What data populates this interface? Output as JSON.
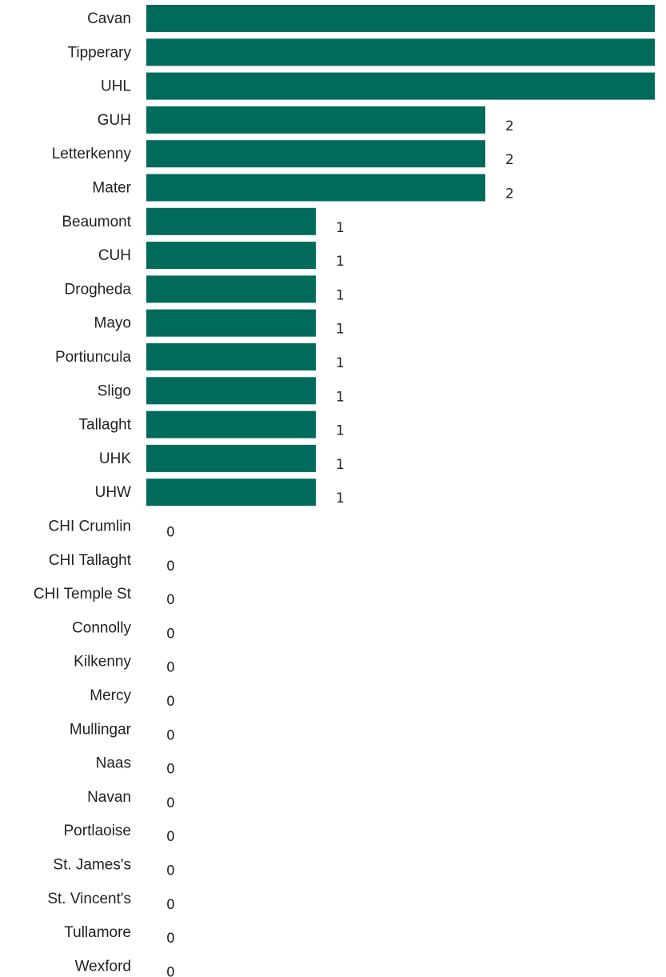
{
  "chart_data": {
    "type": "bar",
    "orientation": "horizontal",
    "title": "",
    "xlabel": "",
    "ylabel": "",
    "xlim": [
      0,
      3
    ],
    "grid": false,
    "legend": "none",
    "colors": {
      "bar": "#006b5a",
      "bar_edge_highlight": "#cfe3df",
      "text": "#222222"
    },
    "categories": [
      "Cavan",
      "Tipperary",
      "UHL",
      "GUH",
      "Letterkenny",
      "Mater",
      "Beaumont",
      "CUH",
      "Drogheda",
      "Mayo",
      "Portiuncula",
      "Sligo",
      "Tallaght",
      "UHK",
      "UHW",
      "CHI Crumlin",
      "CHI Tallaght",
      "CHI Temple St",
      "Connolly",
      "Kilkenny",
      "Mercy",
      "Mullingar",
      "Naas",
      "Navan",
      "Portlaoise",
      "St. James's",
      "St. Vincent's",
      "Tullamore",
      "Wexford"
    ],
    "values": [
      3,
      3,
      3,
      2,
      2,
      2,
      1,
      1,
      1,
      1,
      1,
      1,
      1,
      1,
      1,
      0,
      0,
      0,
      0,
      0,
      0,
      0,
      0,
      0,
      0,
      0,
      0,
      0,
      0
    ]
  }
}
